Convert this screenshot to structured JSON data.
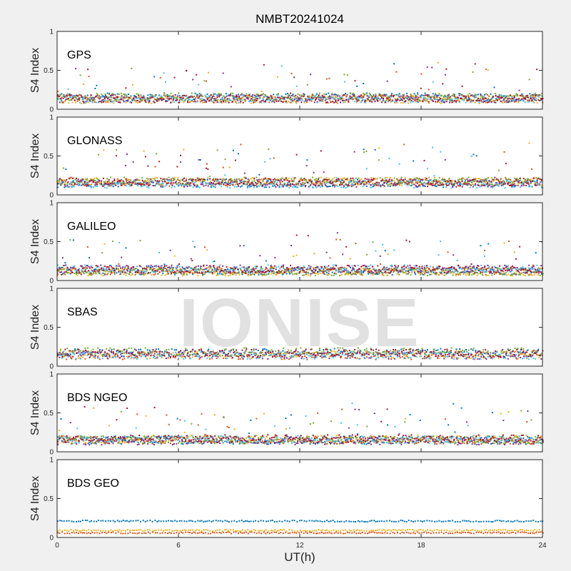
{
  "chart_data": {
    "type": "scatter",
    "title": "NMBT20241024",
    "watermark": "IONISE",
    "xlabel": "UT(h)",
    "ylabel": "S4 Index",
    "xlim": [
      0,
      24
    ],
    "ylim": [
      0,
      1
    ],
    "xticks": [
      "0",
      "6",
      "12",
      "18",
      "24"
    ],
    "yticks": [
      "0",
      "0.5",
      "1"
    ],
    "colors": [
      "#0072BD",
      "#D95319",
      "#EDB120",
      "#7E2F8E",
      "#77AC30",
      "#4DBEEE",
      "#A2142F"
    ],
    "panels": [
      {
        "label": "GPS",
        "baseline": 0.15,
        "spikes": true
      },
      {
        "label": "GLONASS",
        "baseline": 0.15,
        "spikes": true
      },
      {
        "label": "GALILEO",
        "baseline": 0.12,
        "spikes": true
      },
      {
        "label": "SBAS",
        "baseline": 0.16,
        "spikes": false
      },
      {
        "label": "BDS NGEO",
        "baseline": 0.14,
        "spikes": true
      },
      {
        "label": "BDS GEO",
        "baseline": 0.1,
        "spikes": false
      }
    ]
  }
}
